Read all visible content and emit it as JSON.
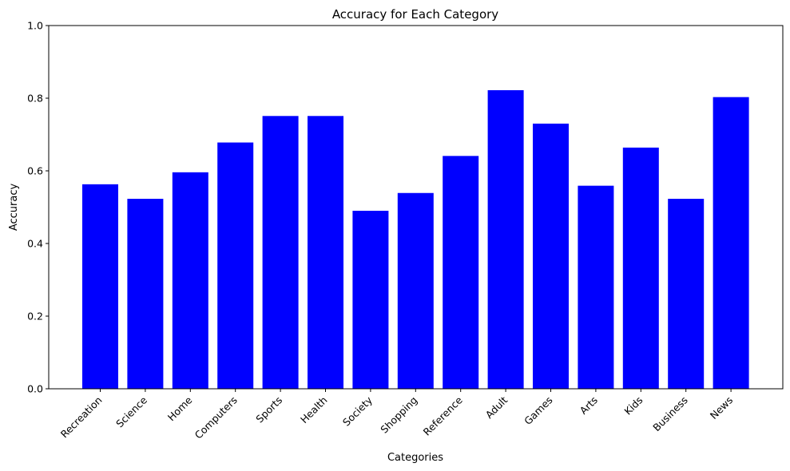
{
  "chart_data": {
    "type": "bar",
    "title": "Accuracy for Each Category",
    "xlabel": "Categories",
    "ylabel": "Accuracy",
    "ylim": [
      0,
      1.0
    ],
    "yticks": [
      "0.0",
      "0.2",
      "0.4",
      "0.6",
      "0.8",
      "1.0"
    ],
    "categories": [
      "Recreation",
      "Science",
      "Home",
      "Computers",
      "Sports",
      "Health",
      "Society",
      "Shopping",
      "Reference",
      "Adult",
      "Games",
      "Arts",
      "Kids",
      "Business",
      "News"
    ],
    "values": [
      0.563,
      0.523,
      0.596,
      0.678,
      0.751,
      0.751,
      0.49,
      0.539,
      0.641,
      0.822,
      0.73,
      0.559,
      0.664,
      0.523,
      0.803
    ],
    "bar_color": "#0000ff",
    "grid": false,
    "legend": "none"
  }
}
